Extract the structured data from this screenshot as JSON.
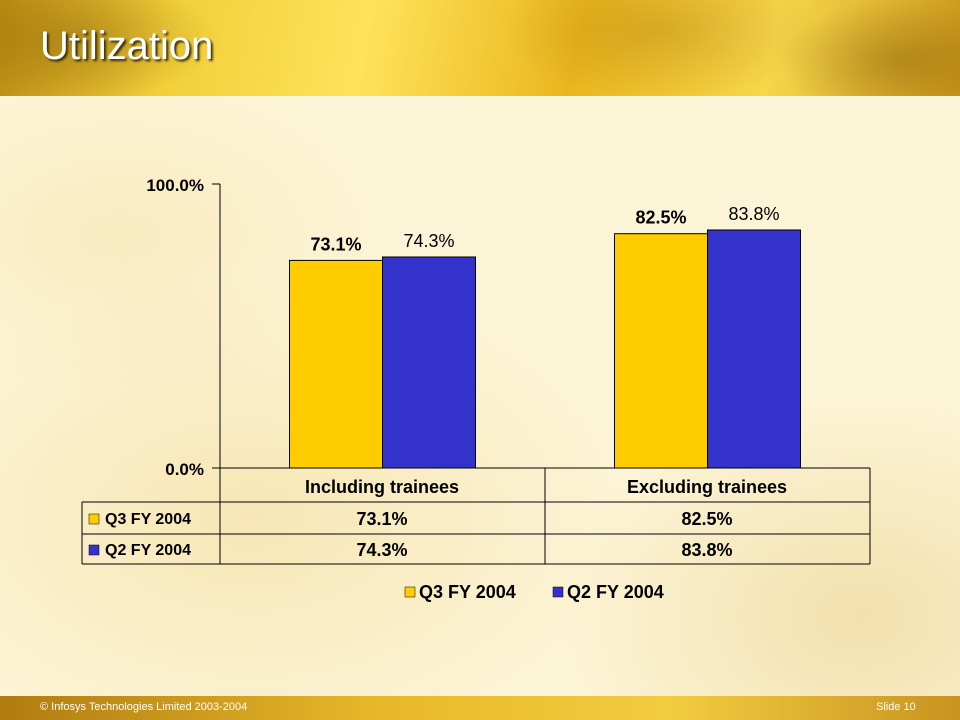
{
  "slide": {
    "title": "Utilization",
    "footer_copyright": "© Infosys Technologies Limited 2003-2004",
    "footer_slide": "Slide 10"
  },
  "chart_data": {
    "type": "bar",
    "categories": [
      "Including trainees",
      "Excluding trainees"
    ],
    "series": [
      {
        "name": "Q3 FY 2004",
        "values": [
          73.1,
          82.5
        ],
        "labels": [
          "73.1%",
          "82.5%"
        ],
        "color": "#ffcc00"
      },
      {
        "name": "Q2 FY 2004",
        "values": [
          74.3,
          83.8
        ],
        "labels": [
          "74.3%",
          "83.8%"
        ],
        "color": "#3333cc"
      }
    ],
    "ylim": [
      0,
      100
    ],
    "ytick_labels": [
      "0.0%",
      "100.0%"
    ],
    "grid": false,
    "legend_placement": "bottom",
    "data_table": true
  }
}
